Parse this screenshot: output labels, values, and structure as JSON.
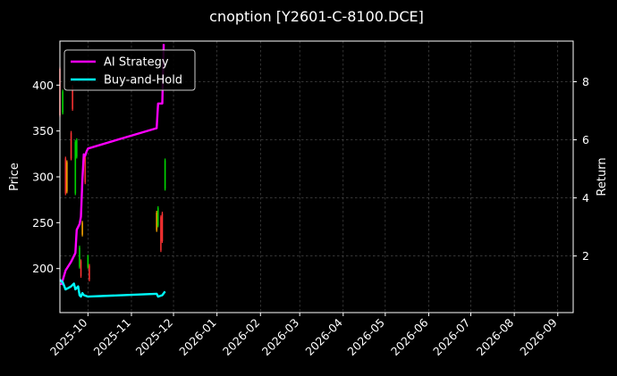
{
  "chart_data": {
    "type": "line",
    "title": "cnoption [Y2601-C-8100.DCE]",
    "xlabel": "",
    "ylabel": "Price",
    "y2label": "Return",
    "grid": true,
    "legend_position": "top-left",
    "xlim": [
      "2025-09-11",
      "2026-09-12"
    ],
    "ylim": [
      152,
      448
    ],
    "y2lim": [
      0.05,
      9.4
    ],
    "x_ticks": [
      "2025-10",
      "2025-11",
      "2025-12",
      "2026-01",
      "2026-02",
      "2026-03",
      "2026-04",
      "2026-05",
      "2026-06",
      "2026-07",
      "2026-08",
      "2026-09"
    ],
    "y_ticks": [
      200,
      250,
      300,
      350,
      400
    ],
    "y2_ticks": [
      2,
      4,
      6,
      8
    ],
    "series": [
      {
        "name": "AI Strategy",
        "axis": "right",
        "color": "#ff00ff",
        "points": [
          [
            "2025-09-12",
            1.0
          ],
          [
            "2025-09-15",
            1.5
          ],
          [
            "2025-09-17",
            1.65
          ],
          [
            "2025-09-19",
            1.8
          ],
          [
            "2025-09-22",
            2.1
          ],
          [
            "2025-09-23",
            2.9
          ],
          [
            "2025-09-25",
            3.1
          ],
          [
            "2025-09-26",
            3.35
          ],
          [
            "2025-09-27",
            4.6
          ],
          [
            "2025-09-28",
            5.5
          ],
          [
            "2025-09-29",
            5.45
          ],
          [
            "2025-09-30",
            5.6
          ],
          [
            "2025-10-01",
            5.7
          ],
          [
            "2025-11-19",
            6.4
          ],
          [
            "2025-11-20",
            7.25
          ],
          [
            "2025-11-23",
            7.25
          ],
          [
            "2025-11-24",
            9.3
          ]
        ]
      },
      {
        "name": "Buy-and-Hold",
        "axis": "right",
        "color": "#00ffff",
        "points": [
          [
            "2025-09-11",
            1.18
          ],
          [
            "2025-09-13",
            1.1
          ],
          [
            "2025-09-15",
            0.85
          ],
          [
            "2025-09-17",
            0.9
          ],
          [
            "2025-09-19",
            0.95
          ],
          [
            "2025-09-21",
            1.05
          ],
          [
            "2025-09-22",
            0.85
          ],
          [
            "2025-09-24",
            0.95
          ],
          [
            "2025-09-25",
            0.65
          ],
          [
            "2025-09-26",
            0.6
          ],
          [
            "2025-09-27",
            0.72
          ],
          [
            "2025-09-28",
            0.65
          ],
          [
            "2025-10-01",
            0.6
          ],
          [
            "2025-11-19",
            0.7
          ],
          [
            "2025-11-20",
            0.6
          ],
          [
            "2025-11-23",
            0.65
          ],
          [
            "2025-11-25",
            0.78
          ]
        ]
      }
    ],
    "candles": [
      {
        "date": "2025-09-11",
        "low": 365,
        "high": 420,
        "color": "#ff3333"
      },
      {
        "date": "2025-09-13",
        "low": 368,
        "high": 395,
        "color": "#00dd00"
      },
      {
        "date": "2025-09-15",
        "low": 280,
        "high": 322,
        "color": "#ff3333"
      },
      {
        "date": "2025-09-16",
        "low": 282,
        "high": 318,
        "color": "#ffaa00"
      },
      {
        "date": "2025-09-19",
        "low": 318,
        "high": 350,
        "color": "#ff3333"
      },
      {
        "date": "2025-09-20",
        "low": 372,
        "high": 400,
        "color": "#ff3333"
      },
      {
        "date": "2025-09-22",
        "low": 280,
        "high": 340,
        "color": "#00dd00"
      },
      {
        "date": "2025-09-23",
        "low": 320,
        "high": 342,
        "color": "#00dd00"
      },
      {
        "date": "2025-09-25",
        "low": 200,
        "high": 225,
        "color": "#00dd00"
      },
      {
        "date": "2025-09-26",
        "low": 190,
        "high": 210,
        "color": "#ff3333"
      },
      {
        "date": "2025-09-27",
        "low": 235,
        "high": 252,
        "color": "#ffaa00"
      },
      {
        "date": "2025-09-29",
        "low": 292,
        "high": 325,
        "color": "#ff3333"
      },
      {
        "date": "2025-10-01",
        "low": 200,
        "high": 215,
        "color": "#00dd00"
      },
      {
        "date": "2025-10-02",
        "low": 186,
        "high": 205,
        "color": "#ff3333"
      },
      {
        "date": "2025-11-19",
        "low": 240,
        "high": 263,
        "color": "#ffaa00"
      },
      {
        "date": "2025-11-20",
        "low": 245,
        "high": 268,
        "color": "#00dd00"
      },
      {
        "date": "2025-11-22",
        "low": 218,
        "high": 258,
        "color": "#ff3333"
      },
      {
        "date": "2025-11-23",
        "low": 228,
        "high": 262,
        "color": "#ff3333"
      },
      {
        "date": "2025-11-25",
        "low": 285,
        "high": 320,
        "color": "#00dd00"
      }
    ]
  }
}
